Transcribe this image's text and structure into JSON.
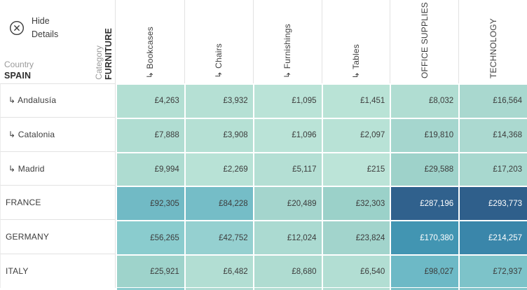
{
  "controls": {
    "hide_details_label": "Hide Details"
  },
  "axes": {
    "row_field": "Country",
    "row_member": "SPAIN",
    "col_field": "Category",
    "col_member": "FURNITURE"
  },
  "chart_data": {
    "type": "heatmap",
    "value_format": "£#,##0 (GBP)",
    "row_dimension": "Country",
    "column_dimension": "Category",
    "expanded_row_member": "SPAIN",
    "expanded_column_member": "FURNITURE",
    "columns": [
      "↳ Bookcases",
      "↳ Chairs",
      "↳ Furnishings",
      "↳ Tables",
      "OFFICE SUPPLIES",
      "TECHNOLOGY"
    ],
    "rows": [
      "↳ Andalusía",
      "↳ Catalonia",
      "↳ Madrid",
      "FRANCE",
      "GERMANY",
      "ITALY"
    ],
    "row_is_sub": [
      true,
      true,
      true,
      false,
      false,
      false
    ],
    "cells": [
      [
        {
          "value": 4263,
          "text": "£4,263",
          "bg": "#b3dfd3",
          "fg": "#3c3c3c"
        },
        {
          "value": 3932,
          "text": "£3,932",
          "bg": "#b5e0d4",
          "fg": "#3c3c3c"
        },
        {
          "value": 1095,
          "text": "£1,095",
          "bg": "#bae3d7",
          "fg": "#3c3c3c"
        },
        {
          "value": 1451,
          "text": "£1,451",
          "bg": "#b9e3d6",
          "fg": "#3c3c3c"
        },
        {
          "value": 8032,
          "text": "£8,032",
          "bg": "#b0ddd2",
          "fg": "#3c3c3c"
        },
        {
          "value": 16564,
          "text": "£16,564",
          "bg": "#a9d8cf",
          "fg": "#3c3c3c"
        }
      ],
      [
        {
          "value": 7888,
          "text": "£7,888",
          "bg": "#b0ddd2",
          "fg": "#3c3c3c"
        },
        {
          "value": 3908,
          "text": "£3,908",
          "bg": "#b5e0d4",
          "fg": "#3c3c3c"
        },
        {
          "value": 1096,
          "text": "£1,096",
          "bg": "#bae3d7",
          "fg": "#3c3c3c"
        },
        {
          "value": 2097,
          "text": "£2,097",
          "bg": "#b8e2d6",
          "fg": "#3c3c3c"
        },
        {
          "value": 19810,
          "text": "£19,810",
          "bg": "#a5d6ce",
          "fg": "#3c3c3c"
        },
        {
          "value": 14368,
          "text": "£14,368",
          "bg": "#abd9d0",
          "fg": "#3c3c3c"
        }
      ],
      [
        {
          "value": 9994,
          "text": "£9,994",
          "bg": "#aedcd1",
          "fg": "#3c3c3c"
        },
        {
          "value": 2269,
          "text": "£2,269",
          "bg": "#b8e2d6",
          "fg": "#3c3c3c"
        },
        {
          "value": 5117,
          "text": "£5,117",
          "bg": "#b4dfd4",
          "fg": "#3c3c3c"
        },
        {
          "value": 215,
          "text": "£215",
          "bg": "#bce4d8",
          "fg": "#3c3c3c"
        },
        {
          "value": 29588,
          "text": "£29,588",
          "bg": "#9ed2ca",
          "fg": "#3c3c3c"
        },
        {
          "value": 17203,
          "text": "£17,203",
          "bg": "#a8d8cf",
          "fg": "#3c3c3c"
        }
      ],
      [
        {
          "value": 92305,
          "text": "£92,305",
          "bg": "#71bac5",
          "fg": "#3c3c3c"
        },
        {
          "value": 84228,
          "text": "£84,228",
          "bg": "#75bdc7",
          "fg": "#3c3c3c"
        },
        {
          "value": 20489,
          "text": "£20,489",
          "bg": "#a4d5cd",
          "fg": "#3c3c3c"
        },
        {
          "value": 32303,
          "text": "£32,303",
          "bg": "#9bd1c9",
          "fg": "#3c3c3c"
        },
        {
          "value": 287196,
          "text": "£287,196",
          "bg": "#30618d",
          "fg": "#ffffff"
        },
        {
          "value": 293773,
          "text": "£293,773",
          "bg": "#2f5f8b",
          "fg": "#ffffff"
        }
      ],
      [
        {
          "value": 56265,
          "text": "£56,265",
          "bg": "#8accce",
          "fg": "#3c3c3c"
        },
        {
          "value": 42752,
          "text": "£42,752",
          "bg": "#95d0d0",
          "fg": "#3c3c3c"
        },
        {
          "value": 12024,
          "text": "£12,024",
          "bg": "#abdad1",
          "fg": "#3c3c3c"
        },
        {
          "value": 23824,
          "text": "£23,824",
          "bg": "#a2d4cc",
          "fg": "#3c3c3c"
        },
        {
          "value": 170380,
          "text": "£170,380",
          "bg": "#4295b2",
          "fg": "#ffffff"
        },
        {
          "value": 214257,
          "text": "£214,257",
          "bg": "#3a86aa",
          "fg": "#ffffff"
        }
      ],
      [
        {
          "value": 25921,
          "text": "£25,921",
          "bg": "#9ed3cb",
          "fg": "#3c3c3c"
        },
        {
          "value": 6482,
          "text": "£6,482",
          "bg": "#b2ded3",
          "fg": "#3c3c3c"
        },
        {
          "value": 8680,
          "text": "£8,680",
          "bg": "#afdcd1",
          "fg": "#3c3c3c"
        },
        {
          "value": 6540,
          "text": "£6,540",
          "bg": "#b2ded3",
          "fg": "#3c3c3c"
        },
        {
          "value": 98027,
          "text": "£98,027",
          "bg": "#6db9c6",
          "fg": "#3c3c3c"
        },
        {
          "value": 72937,
          "text": "£72,937",
          "bg": "#7dc3c9",
          "fg": "#3c3c3c"
        }
      ]
    ],
    "bottom_sliver_colors": [
      "#8accce",
      "#aedbd2",
      "#b4dfd4",
      "#b2ded3",
      "#79c0c7",
      "#84c6cb"
    ]
  }
}
